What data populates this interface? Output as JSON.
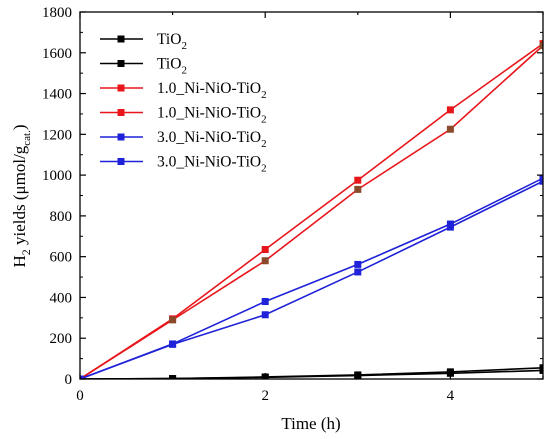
{
  "chart_data": {
    "type": "line",
    "title": "",
    "xlabel": "Time (h)",
    "ylabel": {
      "main": "H",
      "sub1": "2",
      "mid": " yields (μmol/g",
      "sub2": "cat.",
      "end": ")"
    },
    "xlim": [
      0,
      5
    ],
    "ylim": [
      0,
      1800
    ],
    "xticks": [
      "0",
      "2",
      "4"
    ],
    "xtick_values": [
      0,
      2,
      4
    ],
    "yticks": [
      "0",
      "200",
      "400",
      "600",
      "800",
      "1000",
      "1200",
      "1400",
      "1600",
      "1800"
    ],
    "ytick_values": [
      0,
      200,
      400,
      600,
      800,
      1000,
      1200,
      1400,
      1600,
      1800
    ],
    "grid": false,
    "legend_position": "top-left",
    "series": [
      {
        "name": "TiO2",
        "label_main": "TiO",
        "label_sub": "2",
        "color": "#000000",
        "marker_color": "#000000",
        "x": [
          0,
          1,
          2,
          3,
          4,
          5
        ],
        "y": [
          0,
          2,
          10,
          20,
          35,
          55
        ]
      },
      {
        "name": "TiO2",
        "label_main": "TiO",
        "label_sub": "2",
        "color": "#000000",
        "marker_color": "#000000",
        "x": [
          0,
          1,
          2,
          3,
          4,
          5
        ],
        "y": [
          0,
          2,
          8,
          17,
          28,
          42
        ]
      },
      {
        "name": "1.0_Ni-NiO-TiO2",
        "label_main": "1.0_Ni-NiO-TiO",
        "label_sub": "2",
        "color": "#e8161b",
        "marker_color": "#e8161b",
        "x": [
          0,
          1,
          2,
          3,
          4,
          5
        ],
        "y": [
          0,
          295,
          635,
          975,
          1320,
          1645
        ]
      },
      {
        "name": "1.0_Ni-NiO-TiO2",
        "label_main": "1.0_Ni-NiO-TiO",
        "label_sub": "2",
        "color": "#e8161b",
        "marker_color": "#8b4a2b",
        "x": [
          0,
          1,
          2,
          3,
          4,
          5
        ],
        "y": [
          0,
          290,
          580,
          930,
          1225,
          1635
        ]
      },
      {
        "name": "3.0_Ni-NiO-TiO2",
        "label_main": "3.0_Ni-NiO-TiO",
        "label_sub": "2",
        "color": "#1f22d8",
        "marker_color": "#1f22d8",
        "x": [
          0,
          1,
          2,
          3,
          4,
          5
        ],
        "y": [
          0,
          172,
          380,
          562,
          760,
          985
        ]
      },
      {
        "name": "3.0_Ni-NiO-TiO2",
        "label_main": "3.0_Ni-NiO-TiO",
        "label_sub": "2",
        "color": "#1f22d8",
        "marker_color": "#1f22d8",
        "x": [
          0,
          1,
          2,
          3,
          4,
          5
        ],
        "y": [
          0,
          170,
          315,
          525,
          745,
          970
        ]
      }
    ]
  }
}
